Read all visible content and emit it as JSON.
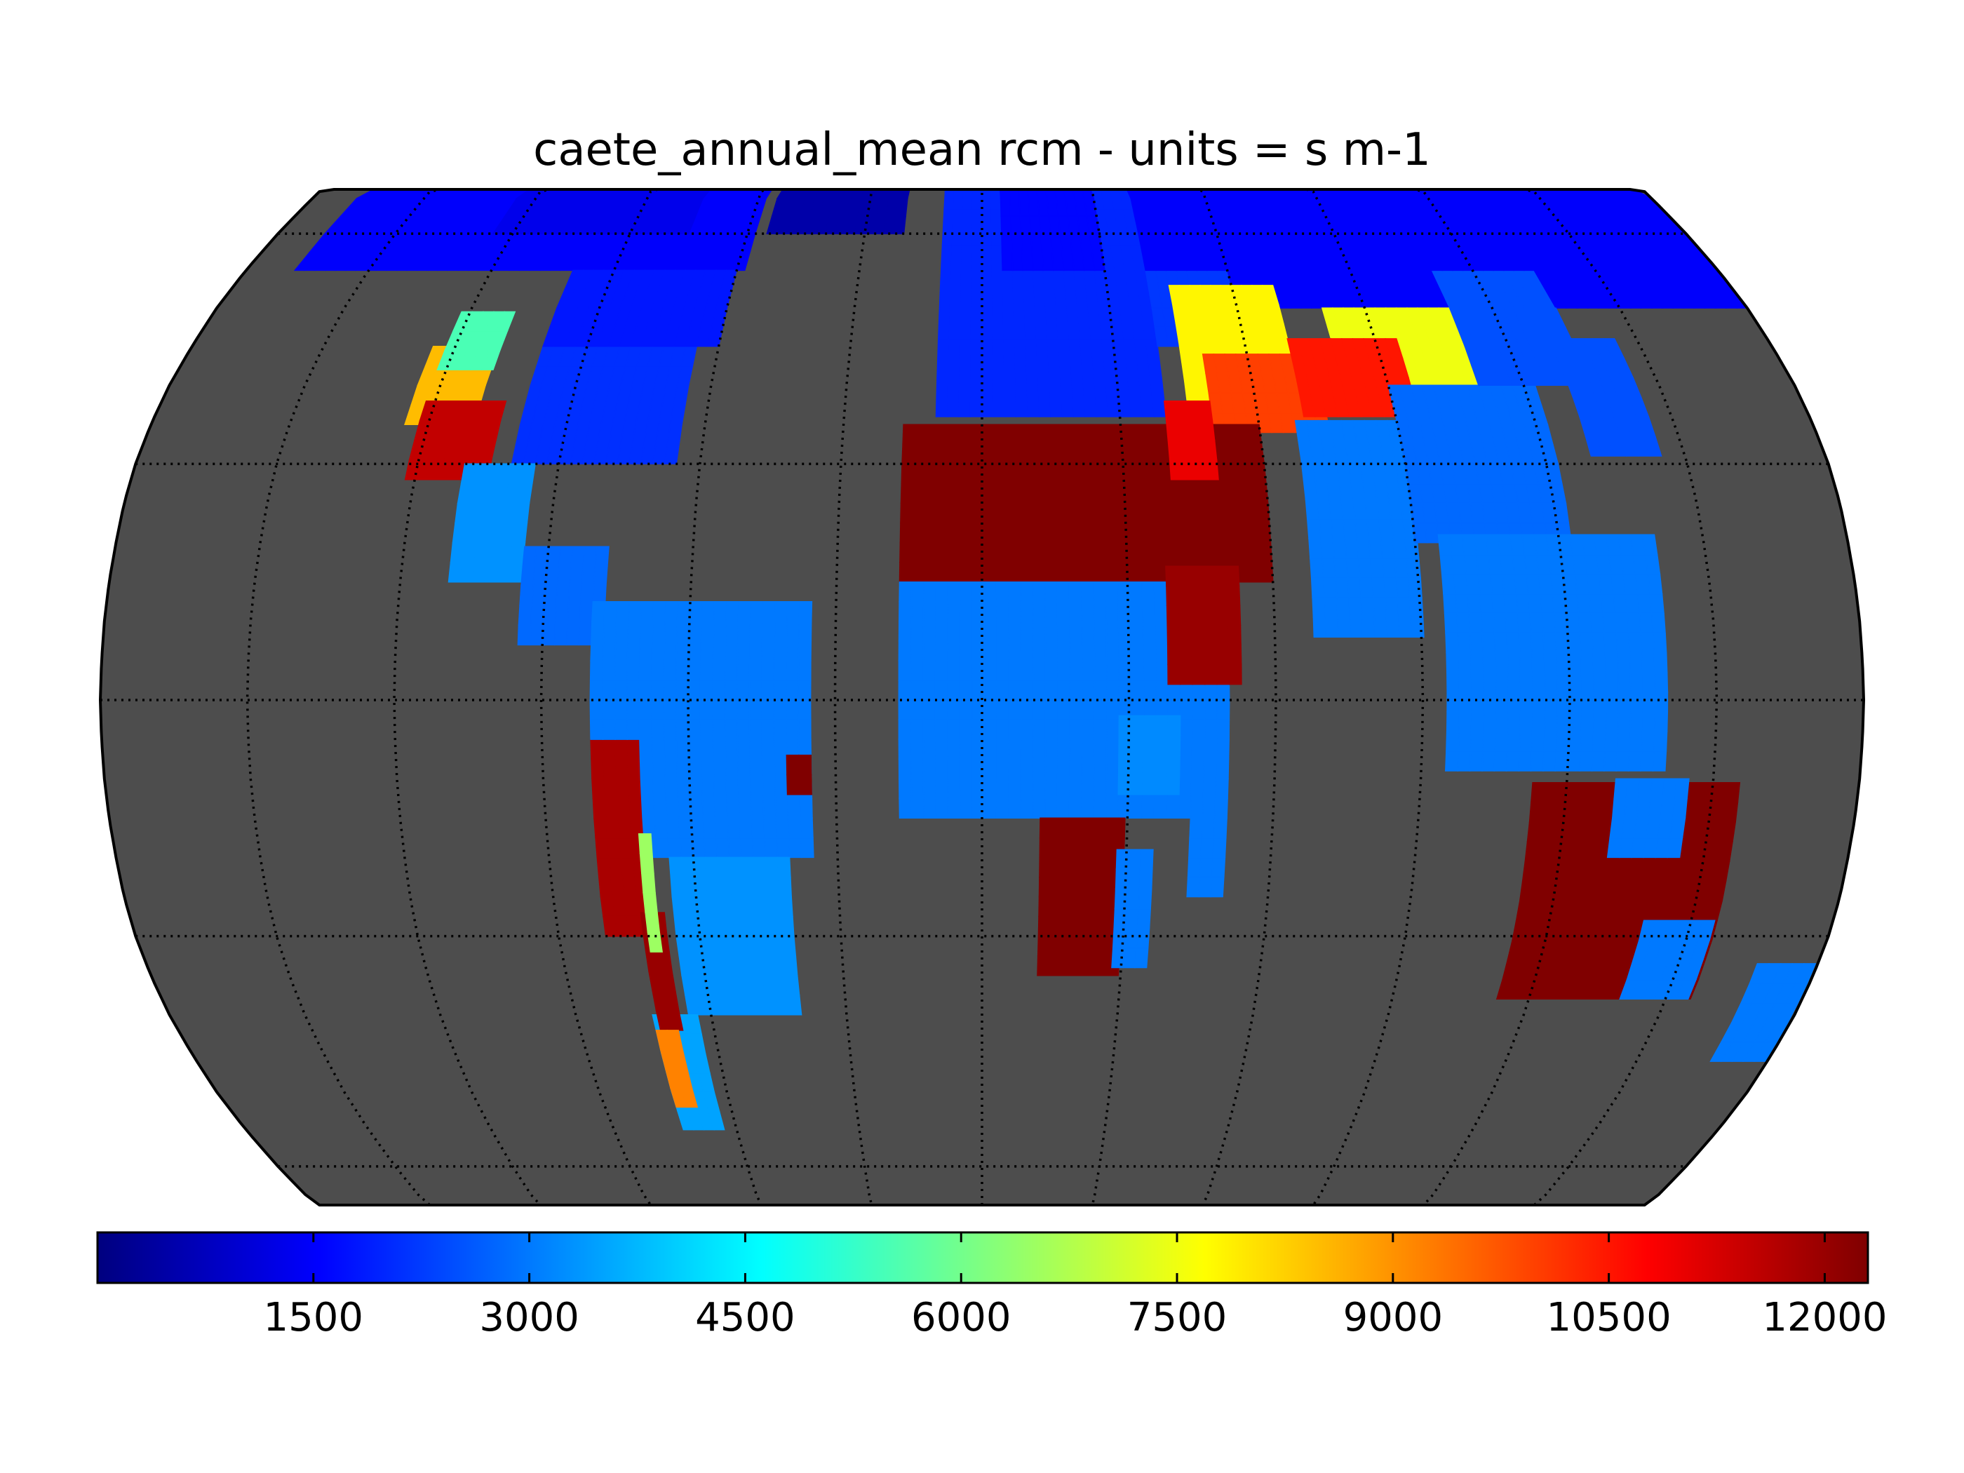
{
  "title": "caete_annual_mean rcm - units = s m-1",
  "map": {
    "projection": "Robinson",
    "ocean_color": "#4d4d4d",
    "graticule": {
      "meridians_deg": [
        -150,
        -120,
        -90,
        -60,
        -30,
        0,
        30,
        60,
        90,
        120,
        150,
        180
      ],
      "parallels_deg": [
        -60,
        -30,
        0,
        30,
        60
      ],
      "style": "dotted"
    },
    "colormap": "jet"
  },
  "colorbar": {
    "vmin": 0,
    "vmax": 12300,
    "ticks": [
      "1500",
      "3000",
      "4500",
      "6000",
      "7500",
      "9000",
      "10500",
      "12000"
    ],
    "tick_values": [
      1500,
      3000,
      4500,
      6000,
      7500,
      9000,
      10500,
      12000
    ]
  },
  "chart_data": {
    "type": "heatmap",
    "title": "caete_annual_mean rcm - units = s m-1",
    "colorbar_range": [
      0,
      12300
    ],
    "regions": [
      {
        "lon": -30,
        "lat": 71,
        "value": 500
      },
      {
        "lon": 100,
        "lat": 62,
        "value": 1600
      },
      {
        "lon": -100,
        "lat": 56,
        "value": 1600
      },
      {
        "lon": 20,
        "lat": 52,
        "value": 2000
      },
      {
        "lon": -90,
        "lat": 38,
        "value": 2300
      },
      {
        "lon": -115,
        "lat": 37,
        "value": 8500
      },
      {
        "lon": -113,
        "lat": 30,
        "value": 11500
      },
      {
        "lon": 10,
        "lat": 22,
        "value": 12300
      },
      {
        "lon": 43,
        "lat": 24,
        "value": 12300
      },
      {
        "lon": 58,
        "lat": 46,
        "value": 7800
      },
      {
        "lon": 72,
        "lat": 38,
        "value": 10000
      },
      {
        "lon": 95,
        "lat": 45,
        "value": 7500
      },
      {
        "lon": 80,
        "lat": 22,
        "value": 3000
      },
      {
        "lon": 20,
        "lat": 0,
        "value": 3000
      },
      {
        "lon": 20,
        "lat": -25,
        "value": 12300
      },
      {
        "lon": -60,
        "lat": -8,
        "value": 3000
      },
      {
        "lon": -70,
        "lat": -30,
        "value": 12000
      },
      {
        "lon": -72,
        "lat": -45,
        "value": 9000
      },
      {
        "lon": 134,
        "lat": -25,
        "value": 12300
      },
      {
        "lon": 110,
        "lat": 0,
        "value": 3000
      }
    ]
  }
}
